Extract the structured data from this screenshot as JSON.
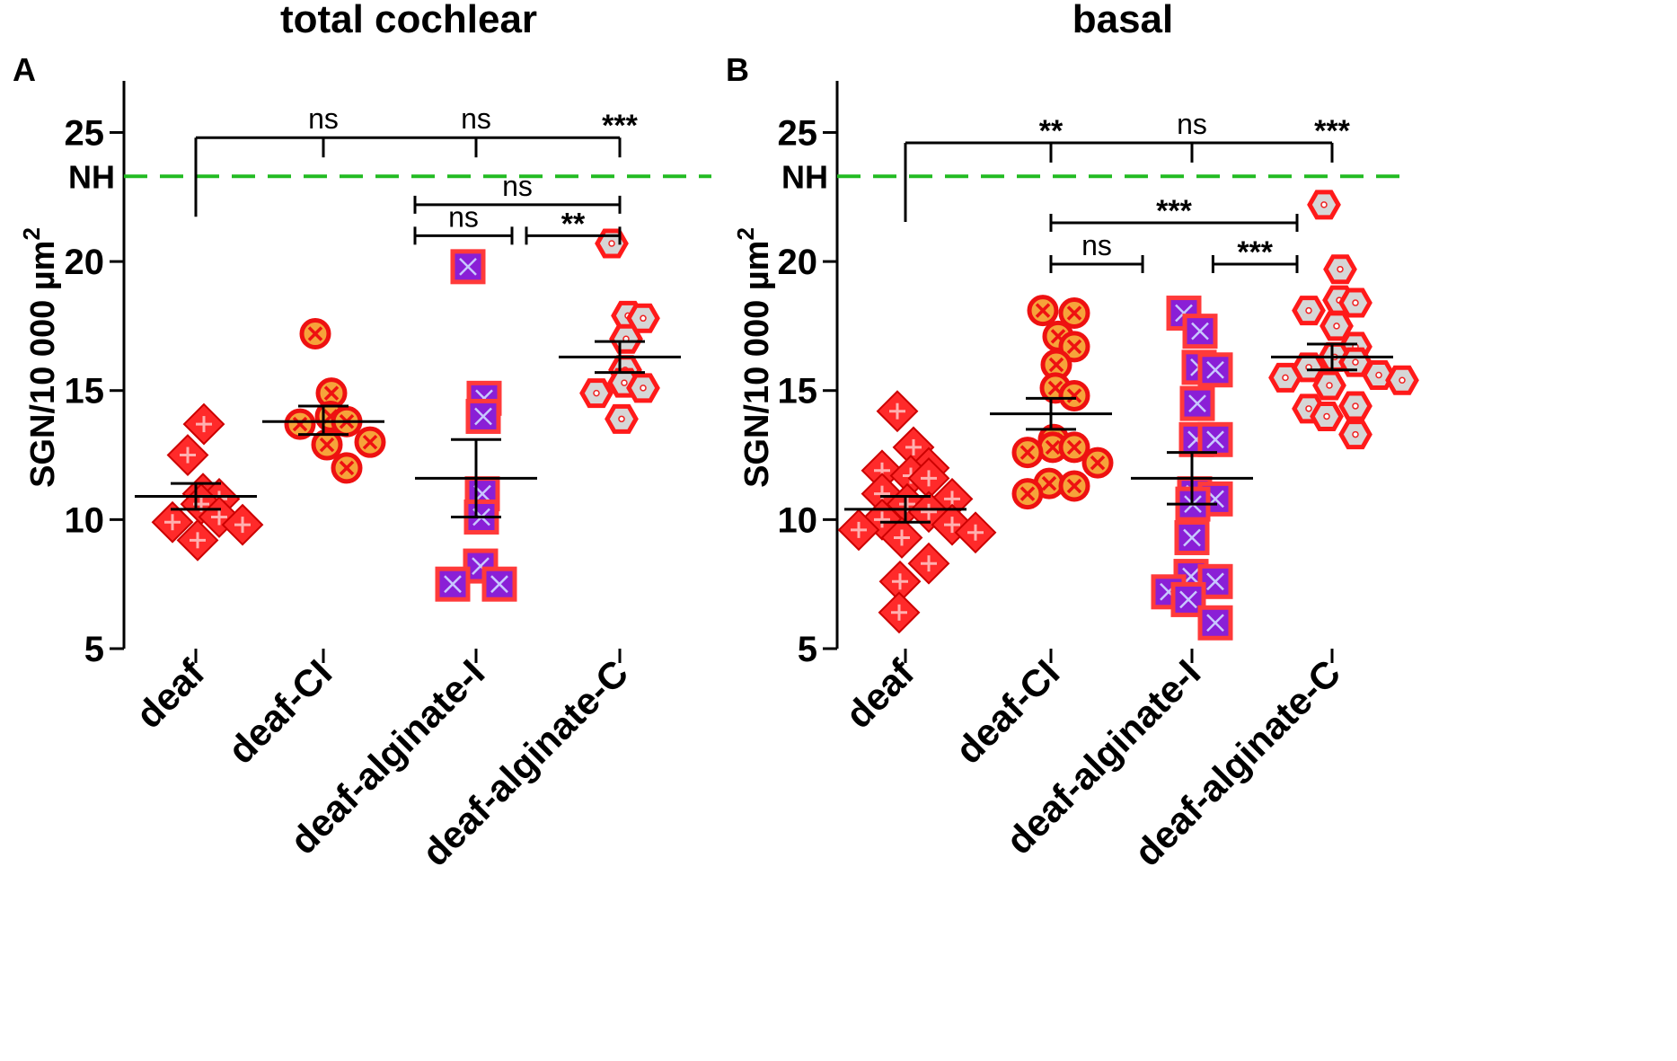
{
  "chart_data": [
    {
      "type": "scatter",
      "panel_label": "A",
      "title": "total cochlear",
      "ylabel": "SGN/10 000 µm",
      "ylabel_superscript": "2",
      "ylim": [
        5,
        27
      ],
      "yticks": [
        5,
        10,
        15,
        20,
        25
      ],
      "reference_line": {
        "label": "NH",
        "value": 23.3,
        "color": "#22bb22"
      },
      "categories": [
        "deaf",
        "deaf-CI",
        "deaf-alginate-I",
        "deaf-alginate-C"
      ],
      "series": [
        {
          "name": "deaf",
          "marker": "diamond",
          "mean": 10.9,
          "sem": [
            10.4,
            11.4
          ],
          "values": [
            12.5,
            13.7,
            11.0,
            10.8,
            10.6,
            10.1,
            9.9,
            9.8,
            9.2
          ]
        },
        {
          "name": "deaf-CI",
          "marker": "circle-x",
          "mean": 13.8,
          "sem": [
            13.3,
            14.4
          ],
          "values": [
            17.2,
            14.9,
            14.0,
            13.8,
            13.7,
            13.0,
            12.9,
            12.0
          ]
        },
        {
          "name": "deaf-alginate-I",
          "marker": "square-x",
          "mean": 11.6,
          "sem": [
            10.1,
            13.1
          ],
          "values": [
            19.8,
            14.7,
            14.0,
            11.0,
            10.1,
            8.2,
            7.5,
            7.5
          ]
        },
        {
          "name": "deaf-alginate-C",
          "marker": "hexagon",
          "mean": 16.3,
          "sem": [
            15.7,
            16.9
          ],
          "values": [
            20.7,
            17.9,
            17.8,
            17.0,
            15.8,
            15.3,
            15.1,
            14.9,
            13.9
          ]
        }
      ],
      "significance": [
        {
          "from": 0,
          "to": 3,
          "level": 24.8,
          "ticks": [
            {
              "at": 1,
              "label": "ns"
            },
            {
              "at": 2,
              "label": "ns"
            },
            {
              "at": 3,
              "label": "***"
            }
          ]
        },
        {
          "from": 1.6,
          "to": 3.0,
          "level": 22.2,
          "label": "ns"
        },
        {
          "from": 1.6,
          "to": 2.25,
          "level": 21.0,
          "label": "ns"
        },
        {
          "from": 2.35,
          "to": 3.0,
          "level": 21.0,
          "label": "**"
        }
      ]
    },
    {
      "type": "scatter",
      "panel_label": "B",
      "title": "basal",
      "ylabel": "SGN/10 000 µm",
      "ylabel_superscript": "2",
      "ylim": [
        5,
        27
      ],
      "yticks": [
        5,
        10,
        15,
        20,
        25
      ],
      "reference_line": {
        "label": "NH",
        "value": 23.3,
        "color": "#22bb22"
      },
      "categories": [
        "deaf",
        "deaf-CI",
        "deaf-alginate-I",
        "deaf-alginate-C"
      ],
      "series": [
        {
          "name": "deaf",
          "marker": "diamond",
          "mean": 10.4,
          "sem": [
            9.9,
            10.9
          ],
          "values": [
            14.2,
            12.8,
            12.0,
            11.9,
            11.7,
            11.6,
            11.0,
            10.8,
            10.6,
            10.3,
            10.0,
            9.8,
            9.6,
            9.5,
            9.3,
            8.3,
            7.6,
            6.4
          ]
        },
        {
          "name": "deaf-CI",
          "marker": "circle-x",
          "mean": 14.1,
          "sem": [
            13.5,
            14.7
          ],
          "values": [
            18.1,
            18.0,
            17.1,
            16.7,
            16.0,
            15.1,
            14.8,
            13.1,
            12.8,
            12.8,
            12.6,
            12.2,
            11.4,
            11.3,
            11.0
          ]
        },
        {
          "name": "deaf-alginate-I",
          "marker": "square-x",
          "mean": 11.6,
          "sem": [
            10.6,
            12.6
          ],
          "values": [
            18.0,
            17.3,
            15.9,
            15.8,
            14.5,
            13.1,
            13.1,
            11.0,
            10.8,
            10.6,
            9.3,
            7.8,
            7.6,
            7.2,
            6.9,
            6.0
          ]
        },
        {
          "name": "deaf-alginate-C",
          "marker": "hexagon",
          "mean": 16.3,
          "sem": [
            15.8,
            16.8
          ],
          "values": [
            22.2,
            19.7,
            18.5,
            18.4,
            18.1,
            17.5,
            16.7,
            16.3,
            16.1,
            15.9,
            15.6,
            15.5,
            15.4,
            15.2,
            14.4,
            14.3,
            14.0,
            13.3
          ]
        }
      ],
      "significance": [
        {
          "from": 0,
          "to": 3,
          "level": 24.6,
          "ticks": [
            {
              "at": 1,
              "label": "**"
            },
            {
              "at": 2,
              "label": "ns"
            },
            {
              "at": 3,
              "label": "***"
            }
          ]
        },
        {
          "from": 1.0,
          "to": 2.75,
          "level": 21.5,
          "label": "***"
        },
        {
          "from": 1.0,
          "to": 1.65,
          "level": 19.9,
          "label": "ns"
        },
        {
          "from": 2.15,
          "to": 2.75,
          "level": 19.9,
          "label": "***"
        }
      ]
    }
  ]
}
